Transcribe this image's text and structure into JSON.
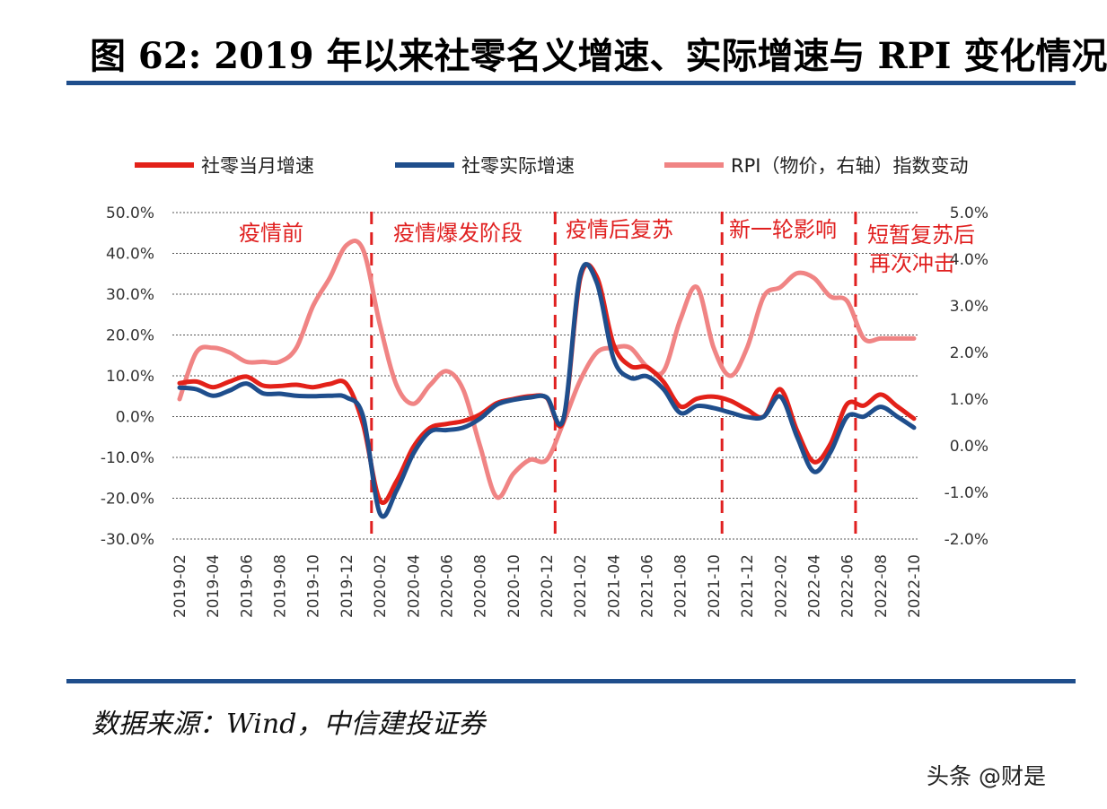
{
  "page": {
    "title": "图 62: 2019 年以来社零名义增速、实际增速与 RPI 变化情况",
    "source": "数据来源：Wind，中信建投证券",
    "watermark": "头条 @财是"
  },
  "colors": {
    "nominal": "#e32119",
    "real": "#1f4e8c",
    "rpi": "#f08484",
    "annotation": "#e02020",
    "rule": "#1f4e8c"
  },
  "chart_data": {
    "type": "line",
    "title": "",
    "x": [
      "2019-02",
      "2019-03",
      "2019-04",
      "2019-05",
      "2019-06",
      "2019-07",
      "2019-08",
      "2019-09",
      "2019-10",
      "2019-11",
      "2019-12",
      "2020-01",
      "2020-02",
      "2020-03",
      "2020-04",
      "2020-05",
      "2020-06",
      "2020-07",
      "2020-08",
      "2020-09",
      "2020-10",
      "2020-11",
      "2020-12",
      "2021-01",
      "2021-02",
      "2021-03",
      "2021-04",
      "2021-05",
      "2021-06",
      "2021-07",
      "2021-08",
      "2021-09",
      "2021-10",
      "2021-11",
      "2021-12",
      "2022-01",
      "2022-02",
      "2022-03",
      "2022-04",
      "2022-05",
      "2022-06",
      "2022-07",
      "2022-08",
      "2022-09",
      "2022-10"
    ],
    "x_tick_labels": [
      "2019-02",
      "2019-04",
      "2019-06",
      "2019-08",
      "2019-10",
      "2019-12",
      "2020-02",
      "2020-04",
      "2020-06",
      "2020-08",
      "2020-10",
      "2020-12",
      "2021-02",
      "2021-04",
      "2021-06",
      "2021-08",
      "2021-10",
      "2021-12",
      "2022-02",
      "2022-04",
      "2022-06",
      "2022-08",
      "2022-10"
    ],
    "series": [
      {
        "name": "社零当月增速",
        "axis": "left",
        "values": [
          8.2,
          8.6,
          7.2,
          8.6,
          9.8,
          7.6,
          7.5,
          7.8,
          7.2,
          8.0,
          8.0,
          -2.0,
          -20.5,
          -15.8,
          -7.5,
          -2.8,
          -1.8,
          -1.1,
          0.5,
          3.3,
          4.3,
          5.0,
          4.6,
          -1.0,
          33.8,
          34.2,
          17.7,
          12.4,
          12.1,
          8.5,
          2.5,
          4.4,
          4.9,
          3.9,
          1.7,
          0.0,
          6.7,
          -3.5,
          -11.1,
          -6.7,
          3.1,
          2.7,
          5.4,
          2.5,
          -0.5
        ]
      },
      {
        "name": "社零实际增速",
        "axis": "left",
        "values": [
          7.1,
          6.7,
          5.1,
          6.4,
          8.1,
          5.7,
          5.6,
          5.1,
          5.0,
          5.1,
          4.7,
          0.0,
          -23.7,
          -18.1,
          -9.1,
          -3.7,
          -3.3,
          -2.7,
          -0.5,
          2.9,
          4.1,
          4.7,
          4.7,
          -0.5,
          34.6,
          32.8,
          14.2,
          9.5,
          9.9,
          6.7,
          0.9,
          2.6,
          2.1,
          1.0,
          -0.1,
          0.0,
          4.9,
          -5.0,
          -13.5,
          -8.7,
          0.0,
          0.0,
          2.4,
          0.0,
          -2.7
        ]
      },
      {
        "name": "RPI（物价，右轴）指数变动",
        "axis": "right",
        "values": [
          1.0,
          2.0,
          2.1,
          2.0,
          1.8,
          1.8,
          1.8,
          2.1,
          3.0,
          3.6,
          4.3,
          4.2,
          2.6,
          1.3,
          0.9,
          1.3,
          1.6,
          1.2,
          0.0,
          -1.1,
          -0.6,
          -0.3,
          -0.3,
          0.5,
          1.4,
          2.0,
          2.1,
          2.1,
          1.7,
          1.6,
          2.7,
          3.4,
          2.1,
          1.5,
          2.1,
          3.2,
          3.4,
          3.7,
          3.6,
          3.2,
          3.1,
          2.3,
          2.3,
          2.3,
          2.3
        ]
      }
    ],
    "y_left": {
      "min": -30,
      "max": 50,
      "step": 10,
      "tick_labels": [
        "50.0%",
        "40.0%",
        "30.0%",
        "20.0%",
        "10.0%",
        "0.0%",
        "-10.0%",
        "-20.0%",
        "-30.0%"
      ]
    },
    "y_right": {
      "min": -2,
      "max": 5,
      "step": 1,
      "tick_labels": [
        "5.0%",
        "4.0%",
        "3.0%",
        "2.0%",
        "1.0%",
        "0.0%",
        "-1.0%",
        "-2.0%"
      ]
    },
    "legend": {
      "position": "top",
      "labels": [
        "社零当月增速",
        "社零实际增速",
        "RPI（物价，右轴）指数变动"
      ]
    },
    "phase_dividers": [
      "2020-01",
      "2020-12",
      "2021-10",
      "2022-06"
    ],
    "phase_labels": [
      {
        "text": "疫情前",
        "at": "2019-04"
      },
      {
        "text": "疫情爆发阶段",
        "at": "2020-02"
      },
      {
        "text": "疫情后复苏",
        "at": "2021-01"
      },
      {
        "text": "新一轮影响",
        "at": "2021-11"
      },
      {
        "text": "短暂复苏后",
        "at": "2022-06"
      },
      {
        "text": "再次冲击",
        "at": "2022-06"
      }
    ],
    "grid": true
  }
}
